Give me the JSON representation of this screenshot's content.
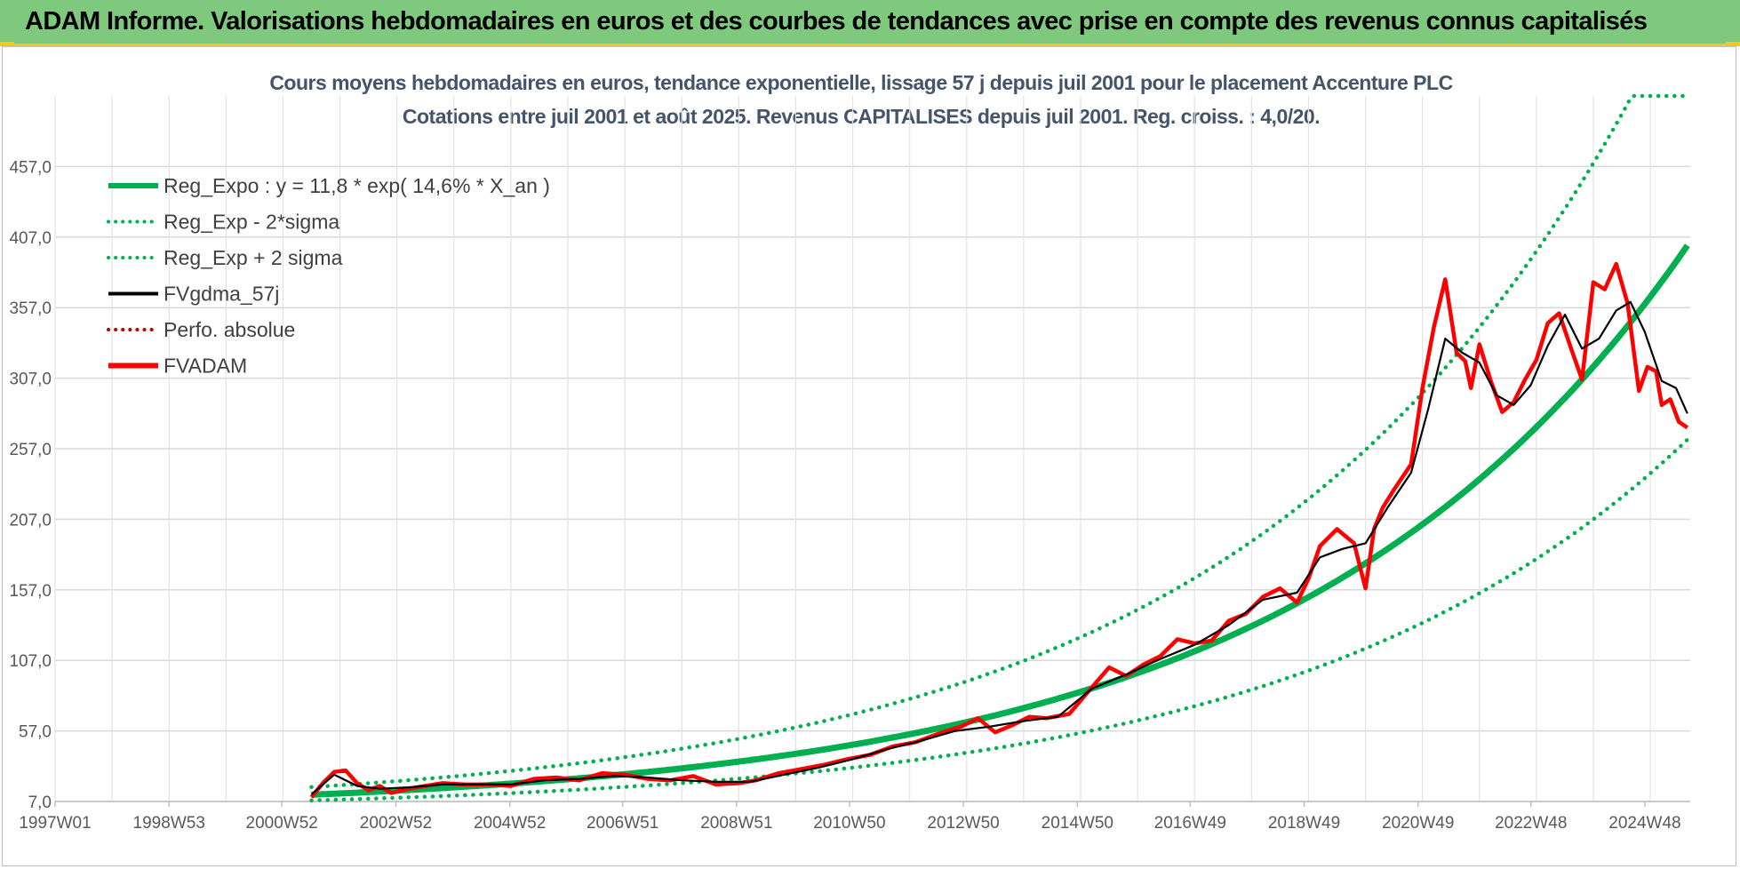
{
  "header": {
    "title": "ADAM Informe. Valorisations hebdomadaires en euros et des courbes de tendances avec prise en compte des revenus connus capitalisés"
  },
  "colors": {
    "banner": "#7fc97f",
    "accent": "#f3c623",
    "reg_expo": "#00b050",
    "fvgdma": "#000000",
    "fvadam": "#ff0000",
    "perfo": "#c00000",
    "title_text": "#44546a"
  },
  "chart_data": {
    "type": "line",
    "title": "Cours moyens hebdomadaires en euros, tendance exponentielle, lissage 57 j depuis juil 2001 pour le placement Accenture PLC",
    "subtitle": "Cotations entre juil 2001 et août 2025. Revenus CAPITALISES depuis juil 2001.  Reg. croiss. : 4,0/20.",
    "xlabel": "",
    "ylabel": "",
    "x_tick_labels": [
      "1997W01",
      "1998W53",
      "2000W52",
      "2002W52",
      "2004W52",
      "2006W51",
      "2008W51",
      "2010W50",
      "2012W50",
      "2014W50",
      "2016W49",
      "2018W49",
      "2020W49",
      "2022W48",
      "2024W48"
    ],
    "y_tick_labels": [
      "7,0",
      "57,0",
      "107,0",
      "157,0",
      "207,0",
      "257,0",
      "307,0",
      "357,0",
      "407,0",
      "457,0"
    ],
    "xlim": [
      1997.0,
      2025.7
    ],
    "ylim": [
      7,
      507
    ],
    "grid": true,
    "legend_position": "top-left",
    "legend": [
      {
        "label": "Reg_Expo : y = 11,8 * exp( 14,6% *  X_an )",
        "style": "solid-thick",
        "color": "#00b050"
      },
      {
        "label": "Reg_Exp - 2*sigma",
        "style": "dotted",
        "color": "#00b050"
      },
      {
        "label": "Reg_Exp + 2 sigma",
        "style": "dotted",
        "color": "#00b050"
      },
      {
        "label": "FVgdma_57j",
        "style": "solid",
        "color": "#000000"
      },
      {
        "label": "Perfo. absolue",
        "style": "dotted",
        "color": "#c00000"
      },
      {
        "label": "FVADAM",
        "style": "solid-thick",
        "color": "#ff0000"
      }
    ],
    "series": [
      {
        "name": "FVADAM",
        "x": [
          2001.5,
          2001.7,
          2001.9,
          2002.1,
          2002.3,
          2002.5,
          2002.7,
          2002.9,
          2003.2,
          2003.5,
          2003.8,
          2004.2,
          2004.6,
          2005.0,
          2005.4,
          2005.8,
          2006.2,
          2006.6,
          2007.0,
          2007.4,
          2007.8,
          2008.2,
          2008.6,
          2009.0,
          2009.3,
          2009.7,
          2010.1,
          2010.5,
          2010.9,
          2011.3,
          2011.7,
          2012.1,
          2012.5,
          2012.9,
          2013.2,
          2013.5,
          2013.8,
          2014.1,
          2014.4,
          2014.8,
          2015.2,
          2015.5,
          2015.8,
          2016.1,
          2016.4,
          2016.7,
          2017.0,
          2017.3,
          2017.6,
          2017.9,
          2018.2,
          2018.5,
          2018.8,
          2019.0,
          2019.2,
          2019.5,
          2019.8,
          2020.0,
          2020.15,
          2020.3,
          2020.5,
          2020.8,
          2021.0,
          2021.2,
          2021.4,
          2021.6,
          2021.75,
          2021.85,
          2022.0,
          2022.2,
          2022.4,
          2022.6,
          2022.8,
          2023.0,
          2023.2,
          2023.4,
          2023.6,
          2023.8,
          2024.0,
          2024.2,
          2024.4,
          2024.6,
          2024.8,
          2024.95,
          2025.1,
          2025.2,
          2025.35,
          2025.5,
          2025.65
        ],
        "values": [
          10,
          20,
          28,
          29,
          20,
          15,
          18,
          13,
          16,
          18,
          20,
          19,
          19,
          18,
          23,
          24,
          22,
          27,
          26,
          23,
          22,
          25,
          19,
          20,
          22,
          27,
          30,
          33,
          37,
          40,
          46,
          49,
          55,
          60,
          66,
          56,
          61,
          67,
          66,
          69,
          88,
          102,
          96,
          104,
          110,
          122,
          119,
          121,
          135,
          140,
          152,
          158,
          148,
          165,
          188,
          200,
          190,
          158,
          200,
          215,
          228,
          246,
          300,
          343,
          377,
          325,
          319,
          300,
          331,
          305,
          283,
          290,
          306,
          320,
          346,
          353,
          329,
          306,
          375,
          370,
          388,
          360,
          298,
          315,
          312,
          288,
          292,
          276,
          272
        ]
      },
      {
        "name": "FVgdma_57j",
        "x": [
          2001.5,
          2001.9,
          2002.3,
          2002.7,
          2003.2,
          2003.8,
          2004.4,
          2005.0,
          2005.6,
          2006.2,
          2006.8,
          2007.4,
          2008.0,
          2008.6,
          2009.2,
          2009.8,
          2010.4,
          2011.0,
          2011.6,
          2012.2,
          2012.8,
          2013.4,
          2014.0,
          2014.6,
          2015.2,
          2015.8,
          2016.4,
          2017.0,
          2017.6,
          2018.2,
          2018.8,
          2019.2,
          2019.6,
          2020.0,
          2020.4,
          2020.8,
          2021.1,
          2021.4,
          2021.7,
          2022.0,
          2022.3,
          2022.6,
          2022.9,
          2023.2,
          2023.5,
          2023.8,
          2024.1,
          2024.4,
          2024.65,
          2024.9,
          2025.2,
          2025.45,
          2025.65
        ],
        "values": [
          12,
          26,
          18,
          16,
          17,
          19,
          19,
          19,
          22,
          23,
          25,
          24,
          22,
          21,
          21,
          26,
          31,
          37,
          44,
          50,
          57,
          60,
          64,
          67,
          87,
          97,
          108,
          118,
          132,
          150,
          155,
          180,
          186,
          190,
          216,
          240,
          285,
          335,
          325,
          318,
          295,
          288,
          302,
          330,
          352,
          328,
          335,
          355,
          361,
          340,
          305,
          300,
          282
        ]
      },
      {
        "name": "Reg_Expo : y = 11,8 * exp( 14,6% *  X_an )",
        "formula": {
          "a": 11.8,
          "rate": 0.146,
          "x0": 2001.5
        },
        "x_range": [
          2001.5,
          2025.65
        ]
      },
      {
        "name": "Reg_Exp - 2*sigma",
        "formula": {
          "a": 7.75,
          "rate": 0.146,
          "x0": 2001.5
        },
        "x_range": [
          2001.5,
          2025.65
        ]
      },
      {
        "name": "Reg_Exp + 2 sigma",
        "formula": {
          "a": 17.2,
          "rate": 0.146,
          "x0": 2001.5
        },
        "x_range": [
          2001.5,
          2025.65
        ],
        "clip_at": 507
      }
    ]
  }
}
